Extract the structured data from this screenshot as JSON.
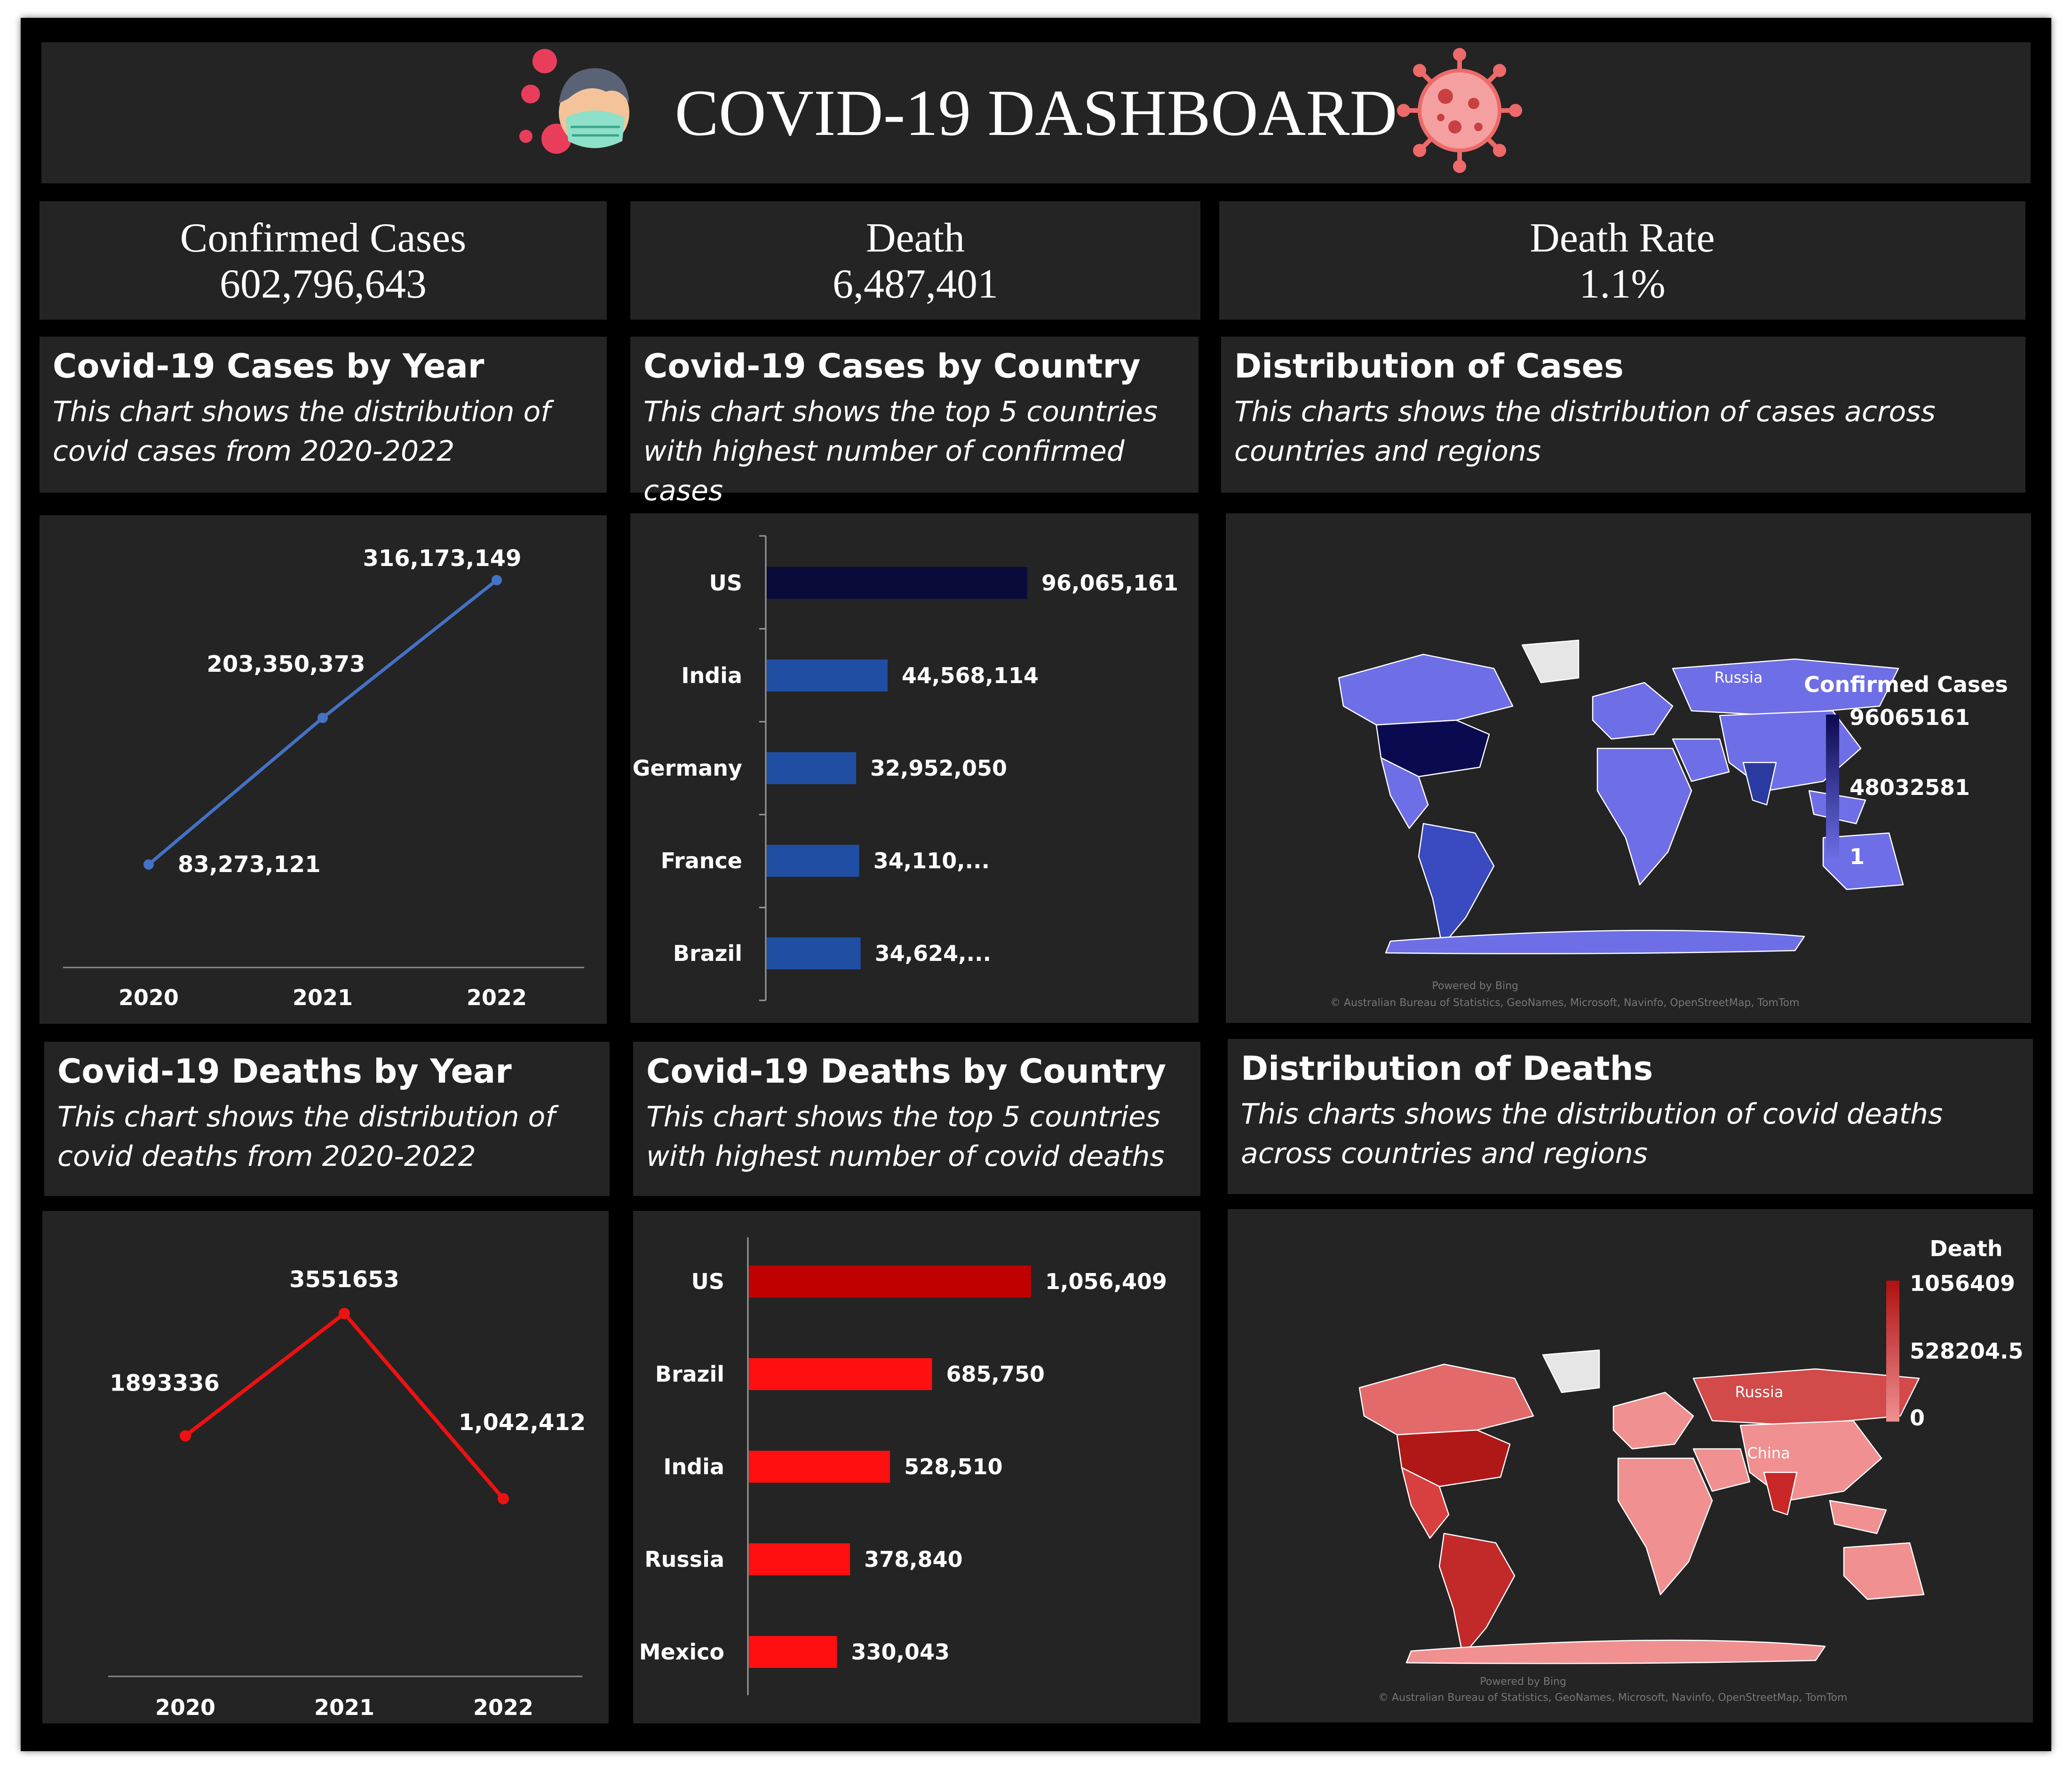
{
  "header": {
    "title": "COVID-19 DASHBOARD",
    "left_icon": "masked-person-virus-icon",
    "right_icon": "virus-icon"
  },
  "kpis": {
    "confirmed": {
      "label": "Confirmed Cases",
      "value": "602,796,643"
    },
    "death": {
      "label": "Death",
      "value": "6,487,401"
    },
    "death_rate": {
      "label": "Death Rate",
      "value": "1.1%"
    }
  },
  "sections": {
    "cases_year": {
      "title": "Covid-19 Cases by Year",
      "desc": "This chart shows the distribution of covid cases from 2020-2022"
    },
    "cases_country": {
      "title": "Covid-19 Cases by Country",
      "desc": "This chart shows the top 5 countries with highest number of confirmed cases"
    },
    "cases_map": {
      "title": "Distribution of Cases",
      "desc": "This charts shows the distribution of cases across countries and regions"
    },
    "deaths_year": {
      "title": "Covid-19 Deaths by Year",
      "desc": "This chart shows the distribution of covid deaths from 2020-2022"
    },
    "deaths_country": {
      "title": "Covid-19 Deaths by Country",
      "desc": "This chart shows the top 5 countries with highest number of covid deaths"
    },
    "deaths_map": {
      "title": "Distribution of Deaths",
      "desc": "This charts shows the distribution of covid deaths across countries and regions"
    }
  },
  "maps": {
    "cases": {
      "legend_title": "Confirmed Cases",
      "legend_values": [
        "96065161",
        "48032581",
        "1"
      ],
      "region_labels": [
        "Russia"
      ],
      "powered_by": "Powered by Bing",
      "credit": "© Australian Bureau of Statistics, GeoNames, Microsoft, Navinfo, OpenStreetMap, TomTom",
      "colors": {
        "low": "#6e6ee6",
        "high": "#0a0a50"
      }
    },
    "deaths": {
      "legend_title": "Death",
      "legend_values": [
        "1056409",
        "528204.5",
        "0"
      ],
      "region_labels": [
        "Russia",
        "China"
      ],
      "powered_by": "Powered by Bing",
      "credit": "© Australian Bureau of Statistics, GeoNames, Microsoft, Navinfo, OpenStreetMap, TomTom",
      "colors": {
        "low": "#f09090",
        "high": "#b01010"
      }
    }
  },
  "chart_data": [
    {
      "id": "cases_by_year",
      "type": "line",
      "title": "Covid-19 Cases by Year",
      "x": [
        "2020",
        "2021",
        "2022"
      ],
      "values": [
        83273121,
        203350373,
        316173149
      ],
      "labels": [
        "83,273,121",
        "203,350,373",
        "316,173,149"
      ],
      "color": "#4472c4"
    },
    {
      "id": "cases_by_country",
      "type": "bar",
      "title": "Covid-19 Cases by Country",
      "categories": [
        "US",
        "India",
        "Germany",
        "France",
        "Brazil"
      ],
      "values": [
        96065161,
        44568114,
        32952050,
        34110000,
        34624000
      ],
      "labels": [
        "96,065,161",
        "44,568,114",
        "32,952,050",
        "34,110,...",
        "34,624,..."
      ],
      "colors": [
        "#0b0b3b",
        "#1f4ea3",
        "#1f4ea3",
        "#1f4ea3",
        "#1f4ea3"
      ]
    },
    {
      "id": "deaths_by_year",
      "type": "line",
      "title": "Covid-19 Deaths by Year",
      "x": [
        "2020",
        "2021",
        "2022"
      ],
      "values": [
        1893336,
        3551653,
        1042412
      ],
      "labels": [
        "1893336",
        "3551653",
        "1,042,412"
      ],
      "color": "#ee1111"
    },
    {
      "id": "deaths_by_country",
      "type": "bar",
      "title": "Covid-19 Deaths by Country",
      "categories": [
        "US",
        "Brazil",
        "India",
        "Russia",
        "Mexico"
      ],
      "values": [
        1056409,
        685750,
        528510,
        378840,
        330043
      ],
      "labels": [
        "1,056,409",
        "685,750",
        "528,510",
        "378,840",
        "330,043"
      ],
      "colors": [
        "#c00000",
        "#ff0f0f",
        "#ff0f0f",
        "#ff0f0f",
        "#ff0f0f"
      ]
    }
  ]
}
